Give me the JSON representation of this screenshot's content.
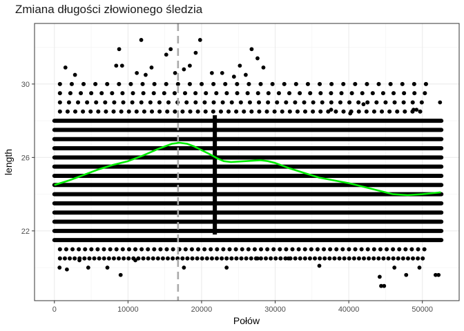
{
  "chart_data": {
    "type": "scatter",
    "title": "Zmiana długości złowionego śledzia",
    "xlabel": "Połów",
    "ylabel": "length",
    "xlim": [
      -2700,
      55000
    ],
    "ylim": [
      18.2,
      33.3
    ],
    "x_ticks": [
      0,
      10000,
      20000,
      30000,
      40000,
      50000
    ],
    "x_tick_labels": [
      "0",
      "10000",
      "20000",
      "30000",
      "40000",
      "50000"
    ],
    "y_ticks": [
      22,
      26,
      30
    ],
    "y_tick_labels": [
      "22",
      "26",
      "30"
    ],
    "grid": true,
    "theme": "bw",
    "point_color": "#000000",
    "x_range": [
      0,
      52580
    ],
    "length_levels_dense": [
      21.5,
      22.0,
      22.5,
      23.0,
      23.5,
      24.0,
      24.5,
      25.0,
      25.5,
      26.0,
      26.5,
      27.0,
      27.5,
      28.0
    ],
    "length_levels_sparse": [
      20.5,
      21.0,
      28.5,
      29.0,
      29.5,
      30.0
    ],
    "points": [
      {
        "x": 1500,
        "y": 30.9
      },
      {
        "x": 2800,
        "y": 30.5
      },
      {
        "x": 8400,
        "y": 31.0
      },
      {
        "x": 8800,
        "y": 31.9
      },
      {
        "x": 9200,
        "y": 31.0
      },
      {
        "x": 11800,
        "y": 32.4
      },
      {
        "x": 13200,
        "y": 30.9
      },
      {
        "x": 15200,
        "y": 31.6
      },
      {
        "x": 15800,
        "y": 31.9
      },
      {
        "x": 18400,
        "y": 31.0
      },
      {
        "x": 19200,
        "y": 31.7
      },
      {
        "x": 19800,
        "y": 32.4
      },
      {
        "x": 25200,
        "y": 31.0
      },
      {
        "x": 26800,
        "y": 31.9
      },
      {
        "x": 27600,
        "y": 31.4
      },
      {
        "x": 28400,
        "y": 30.9
      },
      {
        "x": 11200,
        "y": 30.6
      },
      {
        "x": 12400,
        "y": 30.5
      },
      {
        "x": 16400,
        "y": 30.6
      },
      {
        "x": 17600,
        "y": 30.8
      },
      {
        "x": 21400,
        "y": 30.6
      },
      {
        "x": 22800,
        "y": 30.6
      },
      {
        "x": 24400,
        "y": 30.4
      },
      {
        "x": 26000,
        "y": 30.5
      },
      {
        "x": 37600,
        "y": 28.6
      },
      {
        "x": 40200,
        "y": 28.4
      },
      {
        "x": 42000,
        "y": 28.9
      },
      {
        "x": 49200,
        "y": 28.6
      },
      {
        "x": 52400,
        "y": 29.0
      },
      {
        "x": 48800,
        "y": 28.6
      },
      {
        "x": 700,
        "y": 20.0
      },
      {
        "x": 1700,
        "y": 19.9
      },
      {
        "x": 3400,
        "y": 20.4
      },
      {
        "x": 4600,
        "y": 20.0
      },
      {
        "x": 7200,
        "y": 20.0
      },
      {
        "x": 9000,
        "y": 19.6
      },
      {
        "x": 11000,
        "y": 20.4
      },
      {
        "x": 17600,
        "y": 20.0
      },
      {
        "x": 23400,
        "y": 20.0
      },
      {
        "x": 27600,
        "y": 20.5
      },
      {
        "x": 31800,
        "y": 20.5
      },
      {
        "x": 36000,
        "y": 20.1
      },
      {
        "x": 44200,
        "y": 19.5
      },
      {
        "x": 44400,
        "y": 19.0
      },
      {
        "x": 44800,
        "y": 19.0
      },
      {
        "x": 46200,
        "y": 20.0
      },
      {
        "x": 47800,
        "y": 19.6
      },
      {
        "x": 51800,
        "y": 19.6
      },
      {
        "x": 52200,
        "y": 19.6
      },
      {
        "x": 49600,
        "y": 20.0
      }
    ],
    "smooth_line": {
      "color": "#00ee00",
      "x": [
        0,
        2000,
        4000,
        6000,
        8000,
        10000,
        12000,
        14000,
        16000,
        17000,
        18000,
        19000,
        20000,
        21000,
        22000,
        23000,
        24000,
        26000,
        28000,
        29000,
        30000,
        32000,
        34000,
        36000,
        38000,
        40000,
        42000,
        44000,
        46000,
        48000,
        50000,
        52500
      ],
      "y": [
        24.5,
        24.75,
        25.05,
        25.35,
        25.6,
        25.8,
        26.1,
        26.45,
        26.75,
        26.8,
        26.75,
        26.6,
        26.4,
        26.2,
        25.98,
        25.8,
        25.75,
        25.8,
        25.85,
        25.8,
        25.7,
        25.4,
        25.15,
        24.9,
        24.75,
        24.6,
        24.4,
        24.2,
        24.0,
        23.95,
        24.0,
        24.1
      ]
    },
    "vline": {
      "x": 16800,
      "color": "#aaaaaa",
      "style": "dashed"
    }
  }
}
